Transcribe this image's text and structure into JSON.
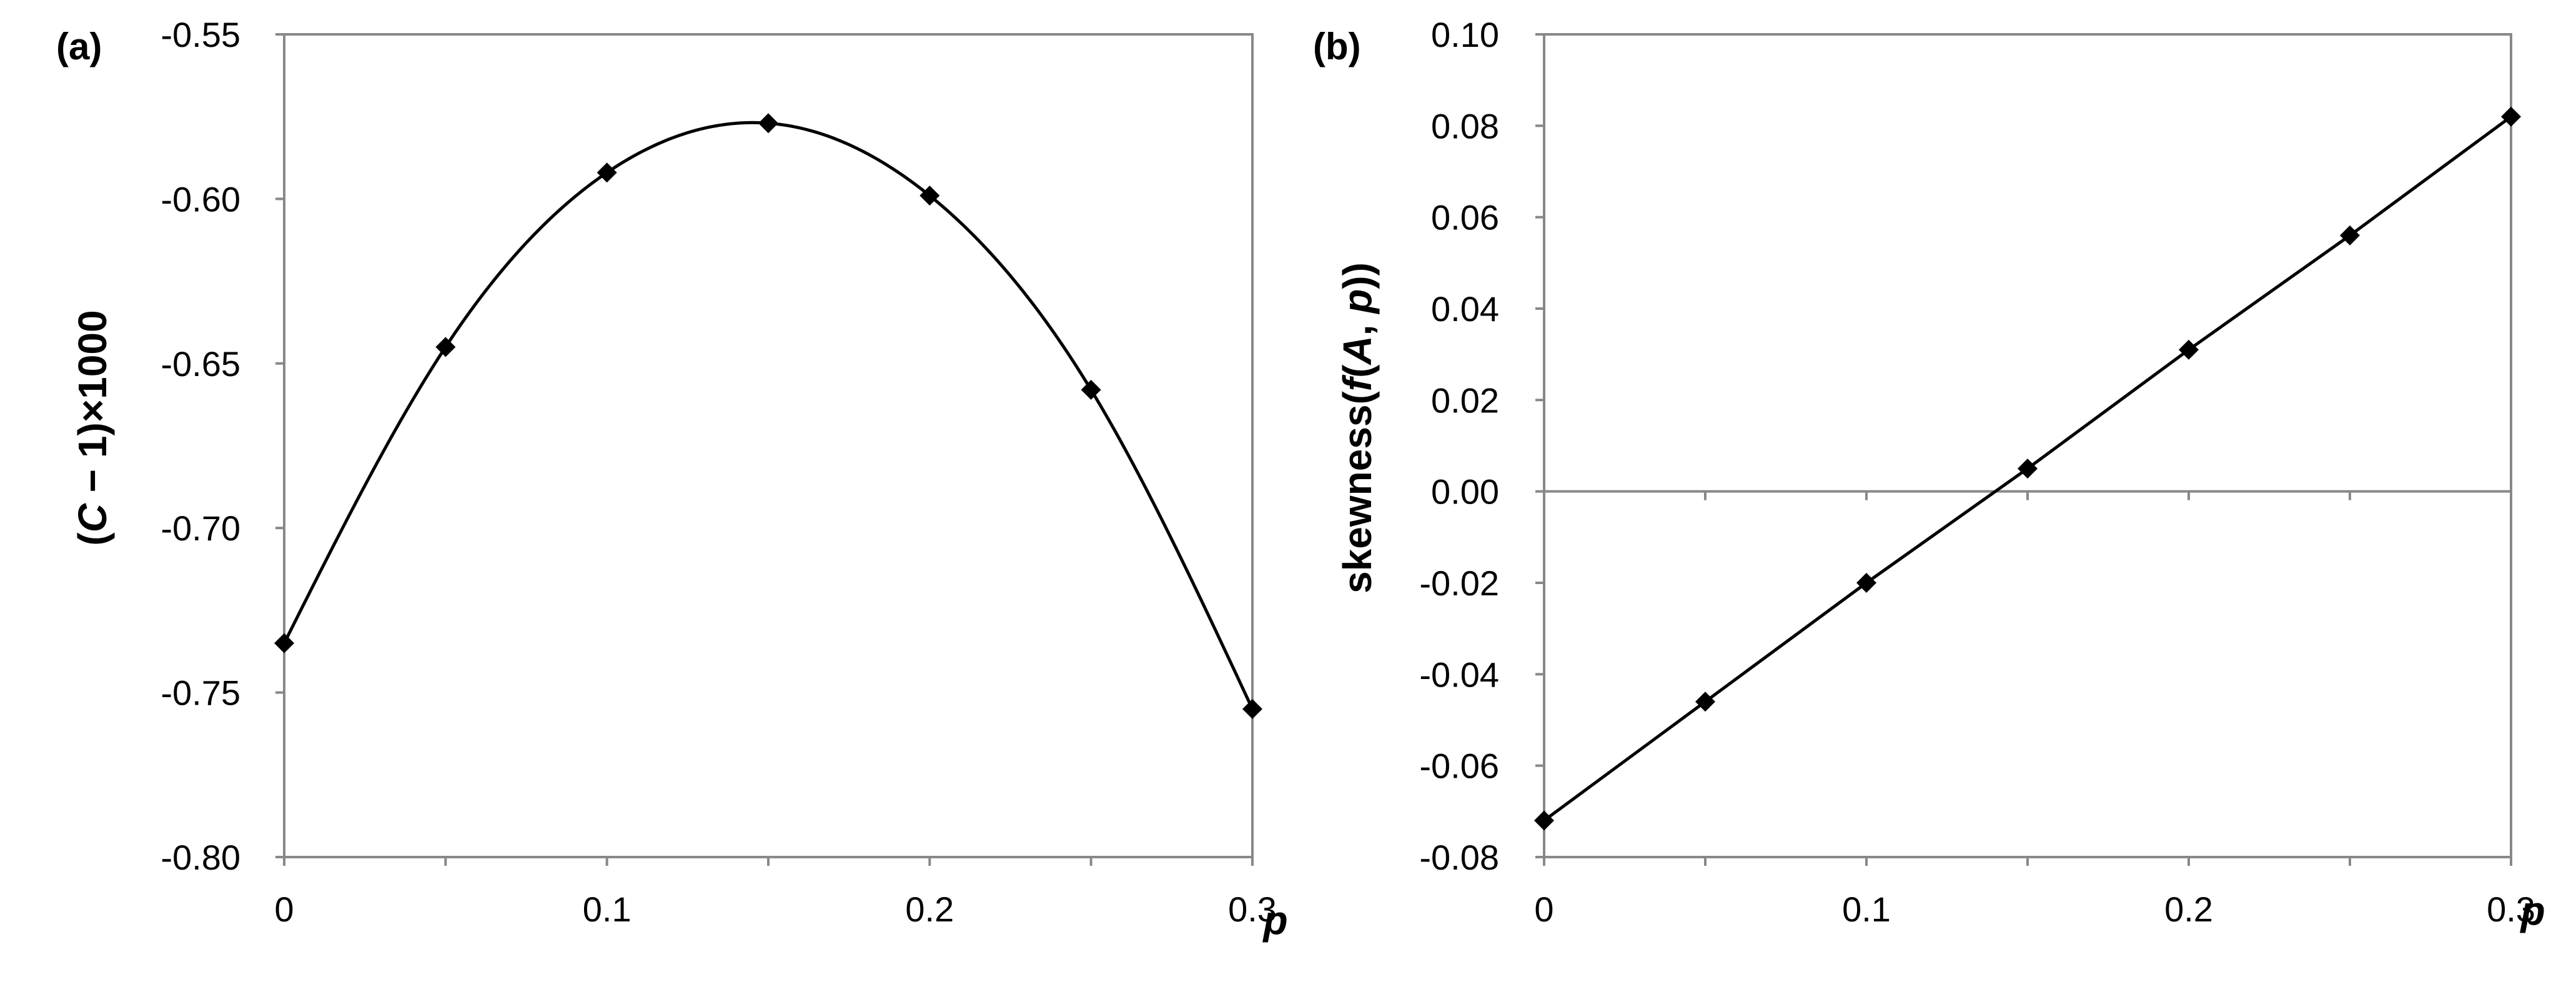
{
  "chart_data": [
    {
      "type": "line",
      "panel_label": "(a)",
      "ylabel_parts": {
        "pre": "(",
        "var": "C",
        "post": " − 1)×1000"
      },
      "xlabel": "p",
      "xlim": [
        0,
        0.3
      ],
      "ylim": [
        -0.8,
        -0.55
      ],
      "xticks": [
        "0",
        "0.1",
        "0.2",
        "0.3"
      ],
      "yticks": [
        "-0.55",
        "-0.60",
        "-0.65",
        "-0.70",
        "-0.75",
        "-0.80"
      ],
      "grid": false,
      "marker": "diamond",
      "smooth": true,
      "series": [
        {
          "x": [
            0,
            0.05,
            0.1,
            0.15,
            0.2,
            0.25,
            0.3
          ],
          "y": [
            -0.735,
            -0.645,
            -0.592,
            -0.577,
            -0.599,
            -0.658,
            -0.755
          ]
        }
      ]
    },
    {
      "type": "line",
      "panel_label": "(b)",
      "ylabel_parts": {
        "pre": "skewness(",
        "var": "f",
        "mid": "(",
        "var2": "A",
        "sep": ", ",
        "var3": "p",
        "post": "))"
      },
      "xlabel": "p",
      "xlim": [
        0,
        0.3
      ],
      "ylim": [
        -0.08,
        0.1
      ],
      "xticks": [
        "0",
        "0.1",
        "0.2",
        "0.3"
      ],
      "yticks": [
        "0.10",
        "0.08",
        "0.06",
        "0.04",
        "0.02",
        "0.00",
        "-0.02",
        "-0.04",
        "-0.06",
        "-0.08"
      ],
      "grid": false,
      "zero_line": true,
      "marker": "diamond",
      "smooth": false,
      "series": [
        {
          "x": [
            0,
            0.05,
            0.1,
            0.15,
            0.2,
            0.25,
            0.3
          ],
          "y": [
            -0.072,
            -0.046,
            -0.02,
            0.005,
            0.031,
            0.056,
            0.082
          ]
        }
      ]
    }
  ]
}
